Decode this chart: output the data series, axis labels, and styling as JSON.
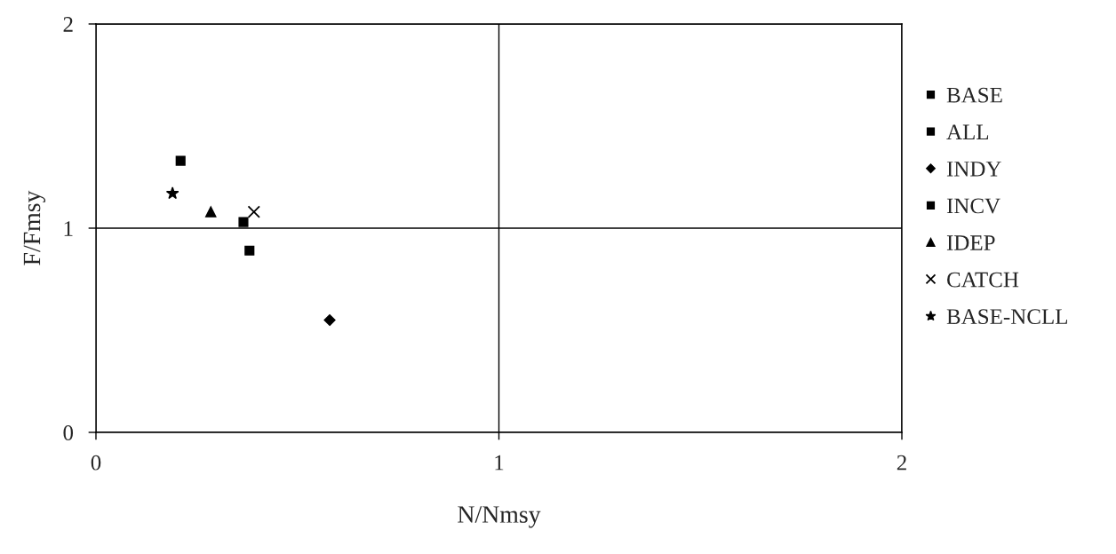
{
  "chart_data": {
    "type": "scatter",
    "xlabel": "N/Nmsy",
    "ylabel": "F/Fmsy",
    "xlim": [
      0,
      2
    ],
    "ylim": [
      0,
      2
    ],
    "xticks": [
      0,
      1,
      2
    ],
    "yticks": [
      0,
      1,
      2
    ],
    "grid": true,
    "legend": "right",
    "series": [
      {
        "name": "BASE",
        "color": "#000000",
        "marker": "square",
        "x": [
          0.366
        ],
        "values": [
          1.03
        ]
      },
      {
        "name": "ALL",
        "color": "#000000",
        "marker": "square",
        "x": [
          0.381
        ],
        "values": [
          0.89
        ]
      },
      {
        "name": "INDY",
        "color": "#000000",
        "marker": "diamond",
        "x": [
          0.58
        ],
        "values": [
          0.55
        ]
      },
      {
        "name": "INCV",
        "color": "#000000",
        "marker": "square",
        "x": [
          0.21
        ],
        "values": [
          1.33
        ]
      },
      {
        "name": "IDEP",
        "color": "#000000",
        "marker": "triangle",
        "x": [
          0.285
        ],
        "values": [
          1.08
        ]
      },
      {
        "name": "CATCH",
        "color": "#000000",
        "marker": "cross",
        "x": [
          0.392
        ],
        "values": [
          1.08
        ]
      },
      {
        "name": "BASE-NCLL",
        "color": "#000000",
        "marker": "star",
        "x": [
          0.19
        ],
        "values": [
          1.17
        ]
      }
    ]
  }
}
